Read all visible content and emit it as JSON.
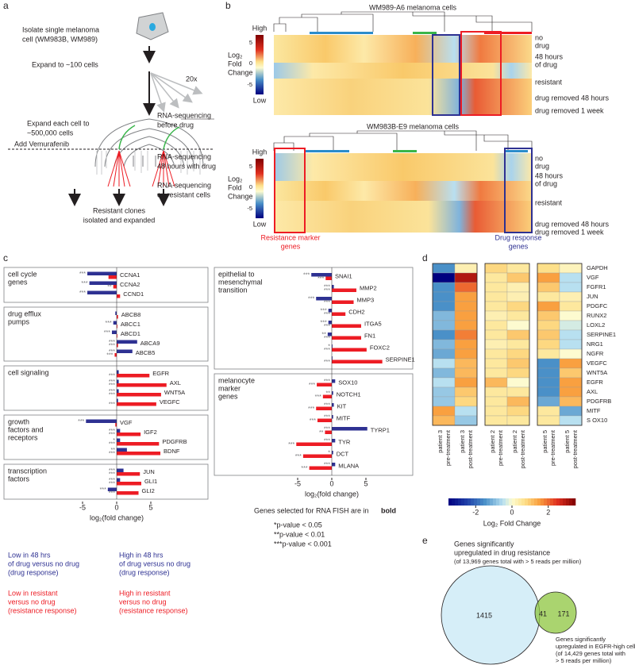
{
  "a": {
    "label": "a",
    "isolate": [
      "Isolate single melanoma",
      "cell (WM983B, WM989)"
    ],
    "expand100": "Expand to ~100 cells",
    "repeat": "20x",
    "expand500k": [
      "Expand each cell to",
      "~500,000 cells"
    ],
    "treatment": "Add Vemurafenib",
    "seq_before": [
      "RNA-sequencing",
      "before drug"
    ],
    "seq_48h": [
      "RNA-sequencing",
      "48 hours with drug"
    ],
    "seq_resistant": [
      "RNA-sequencing",
      "on resistant cells"
    ],
    "outcome": [
      "Resistant clones",
      "isolated and expanded"
    ]
  },
  "b": {
    "label": "b",
    "heatmaps": [
      {
        "title": "WM989-A6 melanoma cells",
        "rows": [
          "no",
          "drug",
          "48 hours",
          "of drug",
          "resistant",
          "drug removed 48 hours",
          "drug removed 1 week"
        ]
      },
      {
        "title": "WM983B-E9 melanoma cells",
        "rows": [
          "no",
          "drug",
          "48 hours",
          "of drug",
          "resistant",
          "drug removed 48 hours",
          "drug removed 1 week"
        ]
      }
    ],
    "colorbar": {
      "high": "High",
      "low": "Low",
      "label": [
        "Log₂",
        "Fold",
        "Change"
      ],
      "ticks": [
        5,
        0,
        -5
      ]
    },
    "resistance_markers": [
      "Resistance marker",
      "genes"
    ],
    "drug_response": [
      "Drug response",
      "genes"
    ]
  },
  "c": {
    "label": "c",
    "series_colors": [
      "#2e3192",
      "#ed1c24"
    ],
    "xlim": [
      -6.5,
      8
    ],
    "xticks": [
      -5,
      0,
      5
    ],
    "xlabel": "log₂(fold change)",
    "groups": [
      {
        "label": [
          "cell cycle",
          "genes"
        ],
        "genes": [
          {
            "name": "CCNA1",
            "values": [
              -4.3,
              -1.2
            ],
            "stars": [
              "***",
              null
            ]
          },
          {
            "name": "CCNA2",
            "values": [
              -4.0,
              -0.5
            ],
            "stars": [
              "***",
              "**"
            ]
          },
          {
            "name": "CCND1",
            "values": [
              -4.3,
              0.5
            ],
            "stars": [
              "***",
              null
            ]
          }
        ]
      },
      {
        "label": [
          "drug efflux",
          "pumps"
        ],
        "genes": [
          {
            "name": "ABCB8",
            "values": [
              -0.2,
              0.2
            ],
            "stars": [
              null,
              null
            ]
          },
          {
            "name": "ABCC1",
            "values": [
              -0.5,
              0.1
            ],
            "stars": [
              "***",
              null
            ]
          },
          {
            "name": "ABCD1",
            "values": [
              -0.7,
              0.1
            ],
            "stars": [
              "***",
              null
            ]
          },
          {
            "name": "ABCA9",
            "values": [
              3.0,
              0.2
            ],
            "stars": [
              "***",
              "***"
            ]
          },
          {
            "name": "ABCB5",
            "values": [
              2.3,
              -0.3
            ],
            "stars": [
              "***",
              "***"
            ]
          }
        ]
      },
      {
        "label": [
          "cell signaling"
        ],
        "genes": [
          {
            "name": "EGFR",
            "values": [
              0.3,
              4.8
            ],
            "stars": [
              null,
              "***"
            ]
          },
          {
            "name": "AXL",
            "values": [
              0.3,
              7.3
            ],
            "stars": [
              "***",
              "***"
            ]
          },
          {
            "name": "WNT5A",
            "values": [
              0.3,
              6.5
            ],
            "stars": [
              "***",
              "***"
            ]
          },
          {
            "name": "VEGFC",
            "values": [
              0.2,
              5.8
            ],
            "stars": [
              null,
              "***"
            ]
          }
        ]
      },
      {
        "label": [
          "growth",
          "factors and",
          "receptors"
        ],
        "genes": [
          {
            "name": "VGF",
            "values": [
              -4.5,
              -0.2
            ],
            "stars": [
              "***",
              null
            ]
          },
          {
            "name": "IGF2",
            "values": [
              0.5,
              3.5
            ],
            "stars": [
              "***",
              "***"
            ]
          },
          {
            "name": "PDGFRB",
            "values": [
              0.5,
              6.2
            ],
            "stars": [
              "*",
              "***"
            ]
          },
          {
            "name": "BDNF",
            "values": [
              1.5,
              6.4
            ],
            "stars": [
              "**",
              "***"
            ]
          }
        ]
      },
      {
        "label": [
          "transcription",
          "factors"
        ],
        "genes": [
          {
            "name": "JUN",
            "values": [
              1.0,
              3.4
            ],
            "stars": [
              "***",
              "***"
            ]
          },
          {
            "name": "GLI1",
            "values": [
              0.5,
              3.6
            ],
            "stars": [
              "***",
              "***"
            ]
          },
          {
            "name": "GLI2",
            "values": [
              -1.3,
              3.2
            ],
            "stars": [
              "***",
              "***"
            ]
          }
        ]
      },
      {
        "label": [
          "epithelial to",
          "mesenchymal",
          "transition"
        ],
        "genes": [
          {
            "name": "SNAI1",
            "values": [
              -3.0,
              -0.9
            ],
            "stars": [
              "***",
              "***"
            ]
          },
          {
            "name": "MMP2",
            "values": [
              0.3,
              3.6
            ],
            "stars": [
              "***",
              "***"
            ]
          },
          {
            "name": "MMP3",
            "values": [
              -2.3,
              3.2
            ],
            "stars": [
              "***",
              "***"
            ]
          },
          {
            "name": "CDH2",
            "values": [
              -0.5,
              2.0
            ],
            "stars": [
              "***",
              "***"
            ]
          },
          {
            "name": "ITGA5",
            "values": [
              -0.5,
              4.3
            ],
            "stars": [
              "***",
              "***"
            ]
          },
          {
            "name": "FN1",
            "values": [
              -0.6,
              4.3
            ],
            "stars": [
              "**",
              "***"
            ]
          },
          {
            "name": "FOXC2",
            "values": [
              0.1,
              5.1
            ],
            "stars": [
              "*",
              "***"
            ]
          },
          {
            "name": "SERPINE1",
            "values": [
              0.1,
              7.4
            ],
            "stars": [
              null,
              "***"
            ]
          }
        ]
      },
      {
        "label": [
          "melanocyte",
          "marker",
          "genes"
        ],
        "genes": [
          {
            "name": "SOX10",
            "values": [
              0.5,
              -2.2
            ],
            "stars": [
              "***",
              "***"
            ]
          },
          {
            "name": "NOTCH1",
            "values": [
              0.2,
              -1.3
            ],
            "stars": [
              "**",
              "***"
            ]
          },
          {
            "name": "KIT",
            "values": [
              0.3,
              -2.3
            ],
            "stars": [
              "***",
              "***"
            ]
          },
          {
            "name": "MITF",
            "values": [
              0.2,
              -2.1
            ],
            "stars": [
              "***",
              "***"
            ]
          },
          {
            "name": "TYRP1",
            "values": [
              5.2,
              -1.0
            ],
            "stars": [
              "***",
              "**"
            ]
          },
          {
            "name": "TYR",
            "values": [
              0.5,
              -5.2
            ],
            "stars": [
              "***",
              "***"
            ]
          },
          {
            "name": "DCT",
            "values": [
              0.2,
              -4.2
            ],
            "stars": [
              "*",
              "***"
            ]
          },
          {
            "name": "MLANA",
            "values": [
              0.5,
              -3.3
            ],
            "stars": [
              "***",
              "***"
            ]
          }
        ]
      }
    ],
    "legend": {
      "low_48h": [
        "Low in 48 hrs",
        "of drug versus no drug",
        "(drug response)"
      ],
      "high_48h": [
        "High in 48 hrs",
        "of drug versus no drug",
        "(drug response)"
      ],
      "low_res": [
        "Low in resistant",
        "versus no drug",
        "(resistance response)"
      ],
      "high_res": [
        "High in resistant",
        "versus no drug",
        "(resistance response)"
      ]
    },
    "fish_note": [
      "Genes selected for RNA FISH are in",
      "bold"
    ],
    "pvalues": [
      "*p-value < 0.05",
      "**p-value < 0.01",
      "***p-value < 0.001"
    ]
  },
  "d": {
    "label": "d",
    "genes": [
      "GAPDH",
      "VGF",
      "FGFR1",
      "JUN",
      "PDGFC",
      "RUNX2",
      "LOXL2",
      "SERPINE1",
      "NRG1",
      "NGFR",
      "VEGFC",
      "WNT5A",
      "EGFR",
      "AXL",
      "PDGFRB",
      "MITF",
      "S OX10"
    ],
    "columns": [
      [
        "patient 3",
        "pre-treatment"
      ],
      [
        "patient 3",
        "post-treatment"
      ],
      [
        "patient 2",
        "pre-treatment"
      ],
      [
        "patient 2",
        "post-treatment"
      ],
      [
        "patient 5",
        "pre-treatment"
      ],
      [
        "patient 5",
        "post-treatment"
      ]
    ],
    "values": [
      [
        -1.5,
        0.3,
        0.8,
        0.5,
        0.7,
        0.2
      ],
      [
        -3.5,
        3.0,
        0.5,
        1.0,
        1.5,
        -0.5
      ],
      [
        -1.5,
        2.0,
        0.5,
        0.3,
        1.0,
        -0.5
      ],
      [
        -1.5,
        1.5,
        0.5,
        0.3,
        0.5,
        0.3
      ],
      [
        -1.5,
        1.5,
        0.5,
        0.8,
        1.5,
        0.5
      ],
      [
        -1.0,
        1.5,
        0.3,
        0.5,
        1.0,
        0.0
      ],
      [
        -1.0,
        1.5,
        0.5,
        0.0,
        0.8,
        -0.3
      ],
      [
        -1.5,
        1.8,
        0.5,
        1.0,
        1.0,
        -0.5
      ],
      [
        -1.0,
        1.5,
        0.3,
        0.5,
        0.8,
        -0.5
      ],
      [
        -1.2,
        1.5,
        0.5,
        0.8,
        0.5,
        0.0
      ],
      [
        -0.5,
        1.2,
        0.5,
        1.0,
        -1.5,
        1.5
      ],
      [
        -1.0,
        1.2,
        0.5,
        0.8,
        -1.5,
        1.0
      ],
      [
        -0.5,
        1.5,
        1.2,
        0.0,
        -1.5,
        1.5
      ],
      [
        -0.8,
        1.0,
        0.5,
        0.5,
        -1.5,
        1.5
      ],
      [
        -0.8,
        0.8,
        0.5,
        1.2,
        -1.2,
        1.2
      ],
      [
        1.5,
        -0.5,
        0.5,
        0.8,
        0.5,
        -1.2
      ],
      [
        1.2,
        -0.8,
        0.5,
        0.5,
        0.5,
        -0.5
      ]
    ],
    "clim": [
      -3.5,
      3.5
    ],
    "cticks": [
      -2,
      0,
      2
    ],
    "colorbar_label": "Log₂ Fold Change"
  },
  "e": {
    "label": "e",
    "set_resistance": [
      "Genes significantly",
      "upregulated in drug resistance",
      "(of 13,969 genes total with > 5 reads per million)"
    ],
    "set_egfr": [
      "Genes significantly",
      "upregulated in EGFR-high cells",
      "(of 14,429 genes total with",
      "> 5 reads per million)"
    ],
    "counts": {
      "resistance_only": 1415,
      "overlap": 41,
      "egfr_only": 171
    }
  }
}
